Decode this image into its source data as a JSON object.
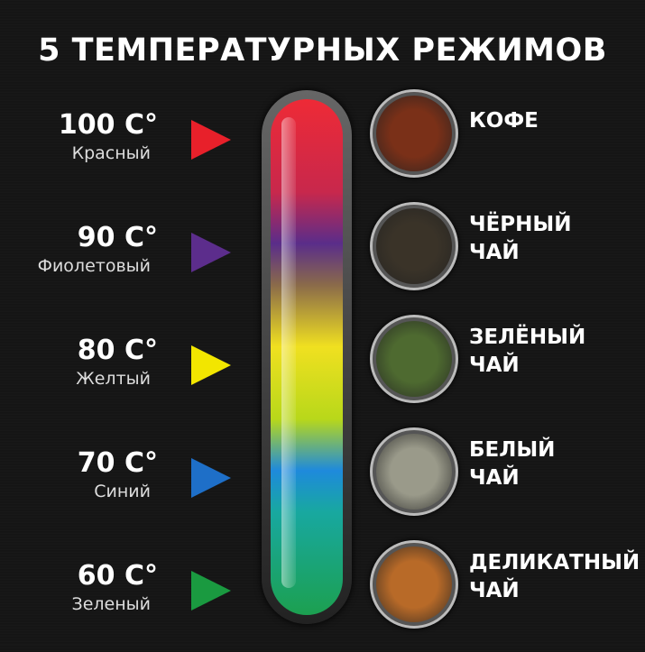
{
  "title": "5 ТЕМПЕРАТУРНЫХ РЕЖИМОВ",
  "modes": [
    {
      "temp": "100 C°",
      "color_name": "Красный",
      "color": "#e8202a",
      "drink": [
        "КОФЕ",
        ""
      ],
      "image": "coffee-beans",
      "image_color": "#7a3018"
    },
    {
      "temp": "90 C°",
      "color_name": "Фиолетовый",
      "color": "#5c2d8c",
      "drink": [
        "ЧЁРНЫЙ",
        "ЧАЙ"
      ],
      "image": "black-tea",
      "image_color": "#3a3328"
    },
    {
      "temp": "80 C°",
      "color_name": "Желтый",
      "color": "#f2e600",
      "drink": [
        "ЗЕЛЁНЫЙ",
        "ЧАЙ"
      ],
      "image": "green-tea",
      "image_color": "#4e6a30"
    },
    {
      "temp": "70 C°",
      "color_name": "Синий",
      "color": "#1e6fc8",
      "drink": [
        "БЕЛЫЙ",
        "ЧАЙ"
      ],
      "image": "white-tea",
      "image_color": "#9a9a8a"
    },
    {
      "temp": "60 C°",
      "color_name": "Зеленый",
      "color": "#1a9a40",
      "drink": [
        "ДЕЛИКАТНЫЙ",
        "ЧАЙ"
      ],
      "image": "herbal-tea",
      "image_color": "#b86a28"
    }
  ]
}
